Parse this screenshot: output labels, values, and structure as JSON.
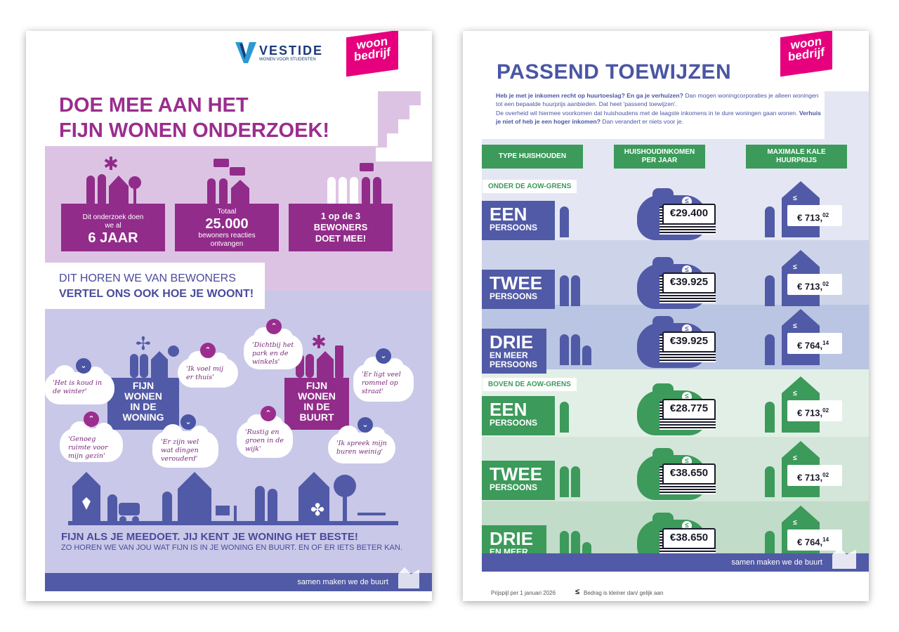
{
  "page1": {
    "vestide_logo": "VESTIDE",
    "vestide_tagline": "WONEN VOOR STUDENTEN",
    "woon_logo": [
      "woon",
      "bedrijf"
    ],
    "title_line1": "DOE MEE AAN HET",
    "title_line2": "FIJN WONEN ONDERZOEK!",
    "stats": [
      {
        "pre": "Dit onderzoek doen we al",
        "big": "6 JAAR",
        "post": ""
      },
      {
        "pre": "Totaal",
        "big": "25.000",
        "post": "bewoners reacties ontvangen"
      },
      {
        "pre": "1 op de 3",
        "big": "BEWONERS DOET MEE!",
        "post": ""
      }
    ],
    "section_line1": "DIT HOREN WE VAN BEWONERS",
    "section_line2": "VERTEL ONS OOK HOE JE WOONT!",
    "block_woning": [
      "FIJN",
      "WONEN",
      "IN DE",
      "WONING"
    ],
    "block_buurt": [
      "FIJN",
      "WONEN",
      "IN DE",
      "BUURT"
    ],
    "quotes": [
      "'Het is koud in de winter'",
      "'Ik voel mij er thuis'",
      "'Dichtbij het park en de winkels'",
      "'Er ligt veel rommel op straat'",
      "'Genoeg ruimte voor mijn gezin'",
      "'Er zijn wel wat dingen verouderd'",
      "'Rustig en groen in de wijk'",
      "'Ik spreek mijn buren weinig'"
    ],
    "closing_bold": "FIJN ALS JE MEEDOET. JIJ KENT JE WONING HET BESTE!",
    "closing_text": "ZO HOREN WE VAN JOU WAT FIJN IS IN JE WONING EN BUURT. EN OF ER IETS BETER KAN.",
    "footer": "samen maken we de buurt"
  },
  "page2": {
    "woon_logo": [
      "woon",
      "bedrijf"
    ],
    "title": "PASSEND TOEWIJZEN",
    "intro_bold1": "Heb je met je inkomen recht op huurtoeslag? En ga je verhuizen?",
    "intro_text1": " Dan mogen woningcorporaties je alleen woningen tot een bepaalde huurprijs aanbieden. Dat heet 'passend toewijzen'.",
    "intro_text2": "De overheid wil hiermee voorkomen dat huishoudens met de laagste inkomens in te dure woningen gaan wonen. ",
    "intro_bold2": "Verhuis je niet of heb je een hoger inkomen?",
    "intro_text3": " Dan verandert er niets voor je.",
    "headers": [
      "TYPE HUISHOUDEN",
      "HUISHOUDINKOMEN PER JAAR",
      "MAXIMALE KALE HUURPRIJS"
    ],
    "group_below": "ONDER DE AOW-GRENS",
    "group_above": "BOVEN DE AOW-GRENS",
    "rows": [
      {
        "t1": "EEN",
        "t2": "PERSOONS",
        "income": "€29.400",
        "rent": "€ 713,",
        "cents": "02"
      },
      {
        "t1": "TWEE",
        "t2": "PERSOONS",
        "income": "€39.925",
        "rent": "€ 713,",
        "cents": "02"
      },
      {
        "t1": "DRIE",
        "t2": "EN MEER PERSOONS",
        "income": "€39.925",
        "rent": "€ 764,",
        "cents": "14"
      },
      {
        "t1": "EEN",
        "t2": "PERSOONS",
        "income": "€28.775",
        "rent": "€ 713,",
        "cents": "02"
      },
      {
        "t1": "TWEE",
        "t2": "PERSOONS",
        "income": "€38.650",
        "rent": "€ 713,",
        "cents": "02"
      },
      {
        "t1": "DRIE",
        "t2": "EN MEER PERSOONS",
        "income": "€38.650",
        "rent": "€ 764,",
        "cents": "14"
      }
    ],
    "le_symbol": "≤",
    "footer": "samen maken we de buurt",
    "note_price": "Prijspijl per 1 januari 2026",
    "note_symbol": "Bedrag is kleiner dan/ gelijk aan"
  },
  "colors": {
    "purple": "#912c8a",
    "navy": "#515aa6",
    "green": "#3c9a5b",
    "pink": "#e6007e"
  }
}
